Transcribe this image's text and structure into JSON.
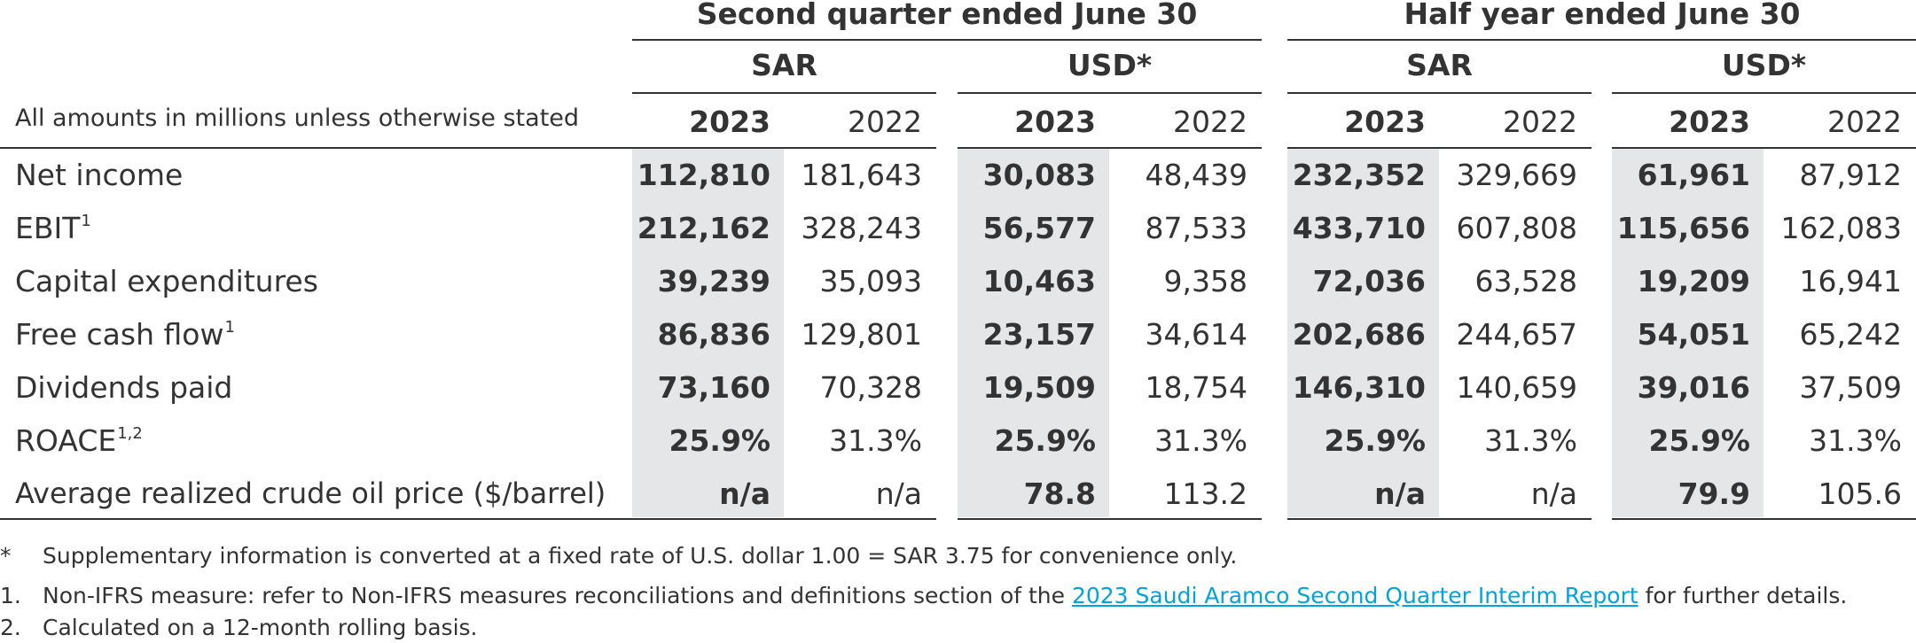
{
  "headers": {
    "quarter": "Second quarter ended June 30",
    "half_year": "Half year ended June 30",
    "sar": "SAR",
    "usd": "USD*",
    "units_note": "All amounts in millions unless otherwise stated",
    "y2023": "2023",
    "y2022": "2022"
  },
  "rows": [
    {
      "label": "Net income",
      "sup": "",
      "q_sar_2023": "112,810",
      "q_sar_2022": "181,643",
      "q_usd_2023": "30,083",
      "q_usd_2022": "48,439",
      "h_sar_2023": "232,352",
      "h_sar_2022": "329,669",
      "h_usd_2023": "61,961",
      "h_usd_2022": "87,912"
    },
    {
      "label": "EBIT",
      "sup": "1",
      "q_sar_2023": "212,162",
      "q_sar_2022": "328,243",
      "q_usd_2023": "56,577",
      "q_usd_2022": "87,533",
      "h_sar_2023": "433,710",
      "h_sar_2022": "607,808",
      "h_usd_2023": "115,656",
      "h_usd_2022": "162,083"
    },
    {
      "label": "Capital expenditures",
      "sup": "",
      "q_sar_2023": "39,239",
      "q_sar_2022": "35,093",
      "q_usd_2023": "10,463",
      "q_usd_2022": "9,358",
      "h_sar_2023": "72,036",
      "h_sar_2022": "63,528",
      "h_usd_2023": "19,209",
      "h_usd_2022": "16,941"
    },
    {
      "label": "Free cash flow",
      "sup": "1",
      "q_sar_2023": "86,836",
      "q_sar_2022": "129,801",
      "q_usd_2023": "23,157",
      "q_usd_2022": "34,614",
      "h_sar_2023": "202,686",
      "h_sar_2022": "244,657",
      "h_usd_2023": "54,051",
      "h_usd_2022": "65,242"
    },
    {
      "label": "Dividends paid",
      "sup": "",
      "q_sar_2023": "73,160",
      "q_sar_2022": "70,328",
      "q_usd_2023": "19,509",
      "q_usd_2022": "18,754",
      "h_sar_2023": "146,310",
      "h_sar_2022": "140,659",
      "h_usd_2023": "39,016",
      "h_usd_2022": "37,509"
    },
    {
      "label": "ROACE",
      "sup": "1,2",
      "q_sar_2023": "25.9%",
      "q_sar_2022": "31.3%",
      "q_usd_2023": "25.9%",
      "q_usd_2022": "31.3%",
      "h_sar_2023": "25.9%",
      "h_sar_2022": "31.3%",
      "h_usd_2023": "25.9%",
      "h_usd_2022": "31.3%"
    },
    {
      "label": "Average realized crude oil price ($/barrel)",
      "sup": "",
      "q_sar_2023": "n/a",
      "q_sar_2022": "n/a",
      "q_usd_2023": "78.8",
      "q_usd_2022": "113.2",
      "h_sar_2023": "n/a",
      "h_sar_2022": "n/a",
      "h_usd_2023": "79.9",
      "h_usd_2022": "105.6"
    }
  ],
  "footnotes": [
    {
      "mark": "*",
      "text": "Supplementary information is converted at a fixed rate of U.S. dollar 1.00 = SAR 3.75 for convenience only."
    },
    {
      "mark": "1.",
      "text_before": "Non-IFRS measure: refer to Non-IFRS measures reconciliations and definitions section of the ",
      "link": "2023 Saudi Aramco Second Quarter Interim Report",
      "text_after": " for further details."
    },
    {
      "mark": "2.",
      "text": "Calculated on a 12-month rolling basis."
    }
  ],
  "colors": {
    "shade": "#e5e6e8",
    "text": "#333333",
    "link": "#00a3e0"
  }
}
